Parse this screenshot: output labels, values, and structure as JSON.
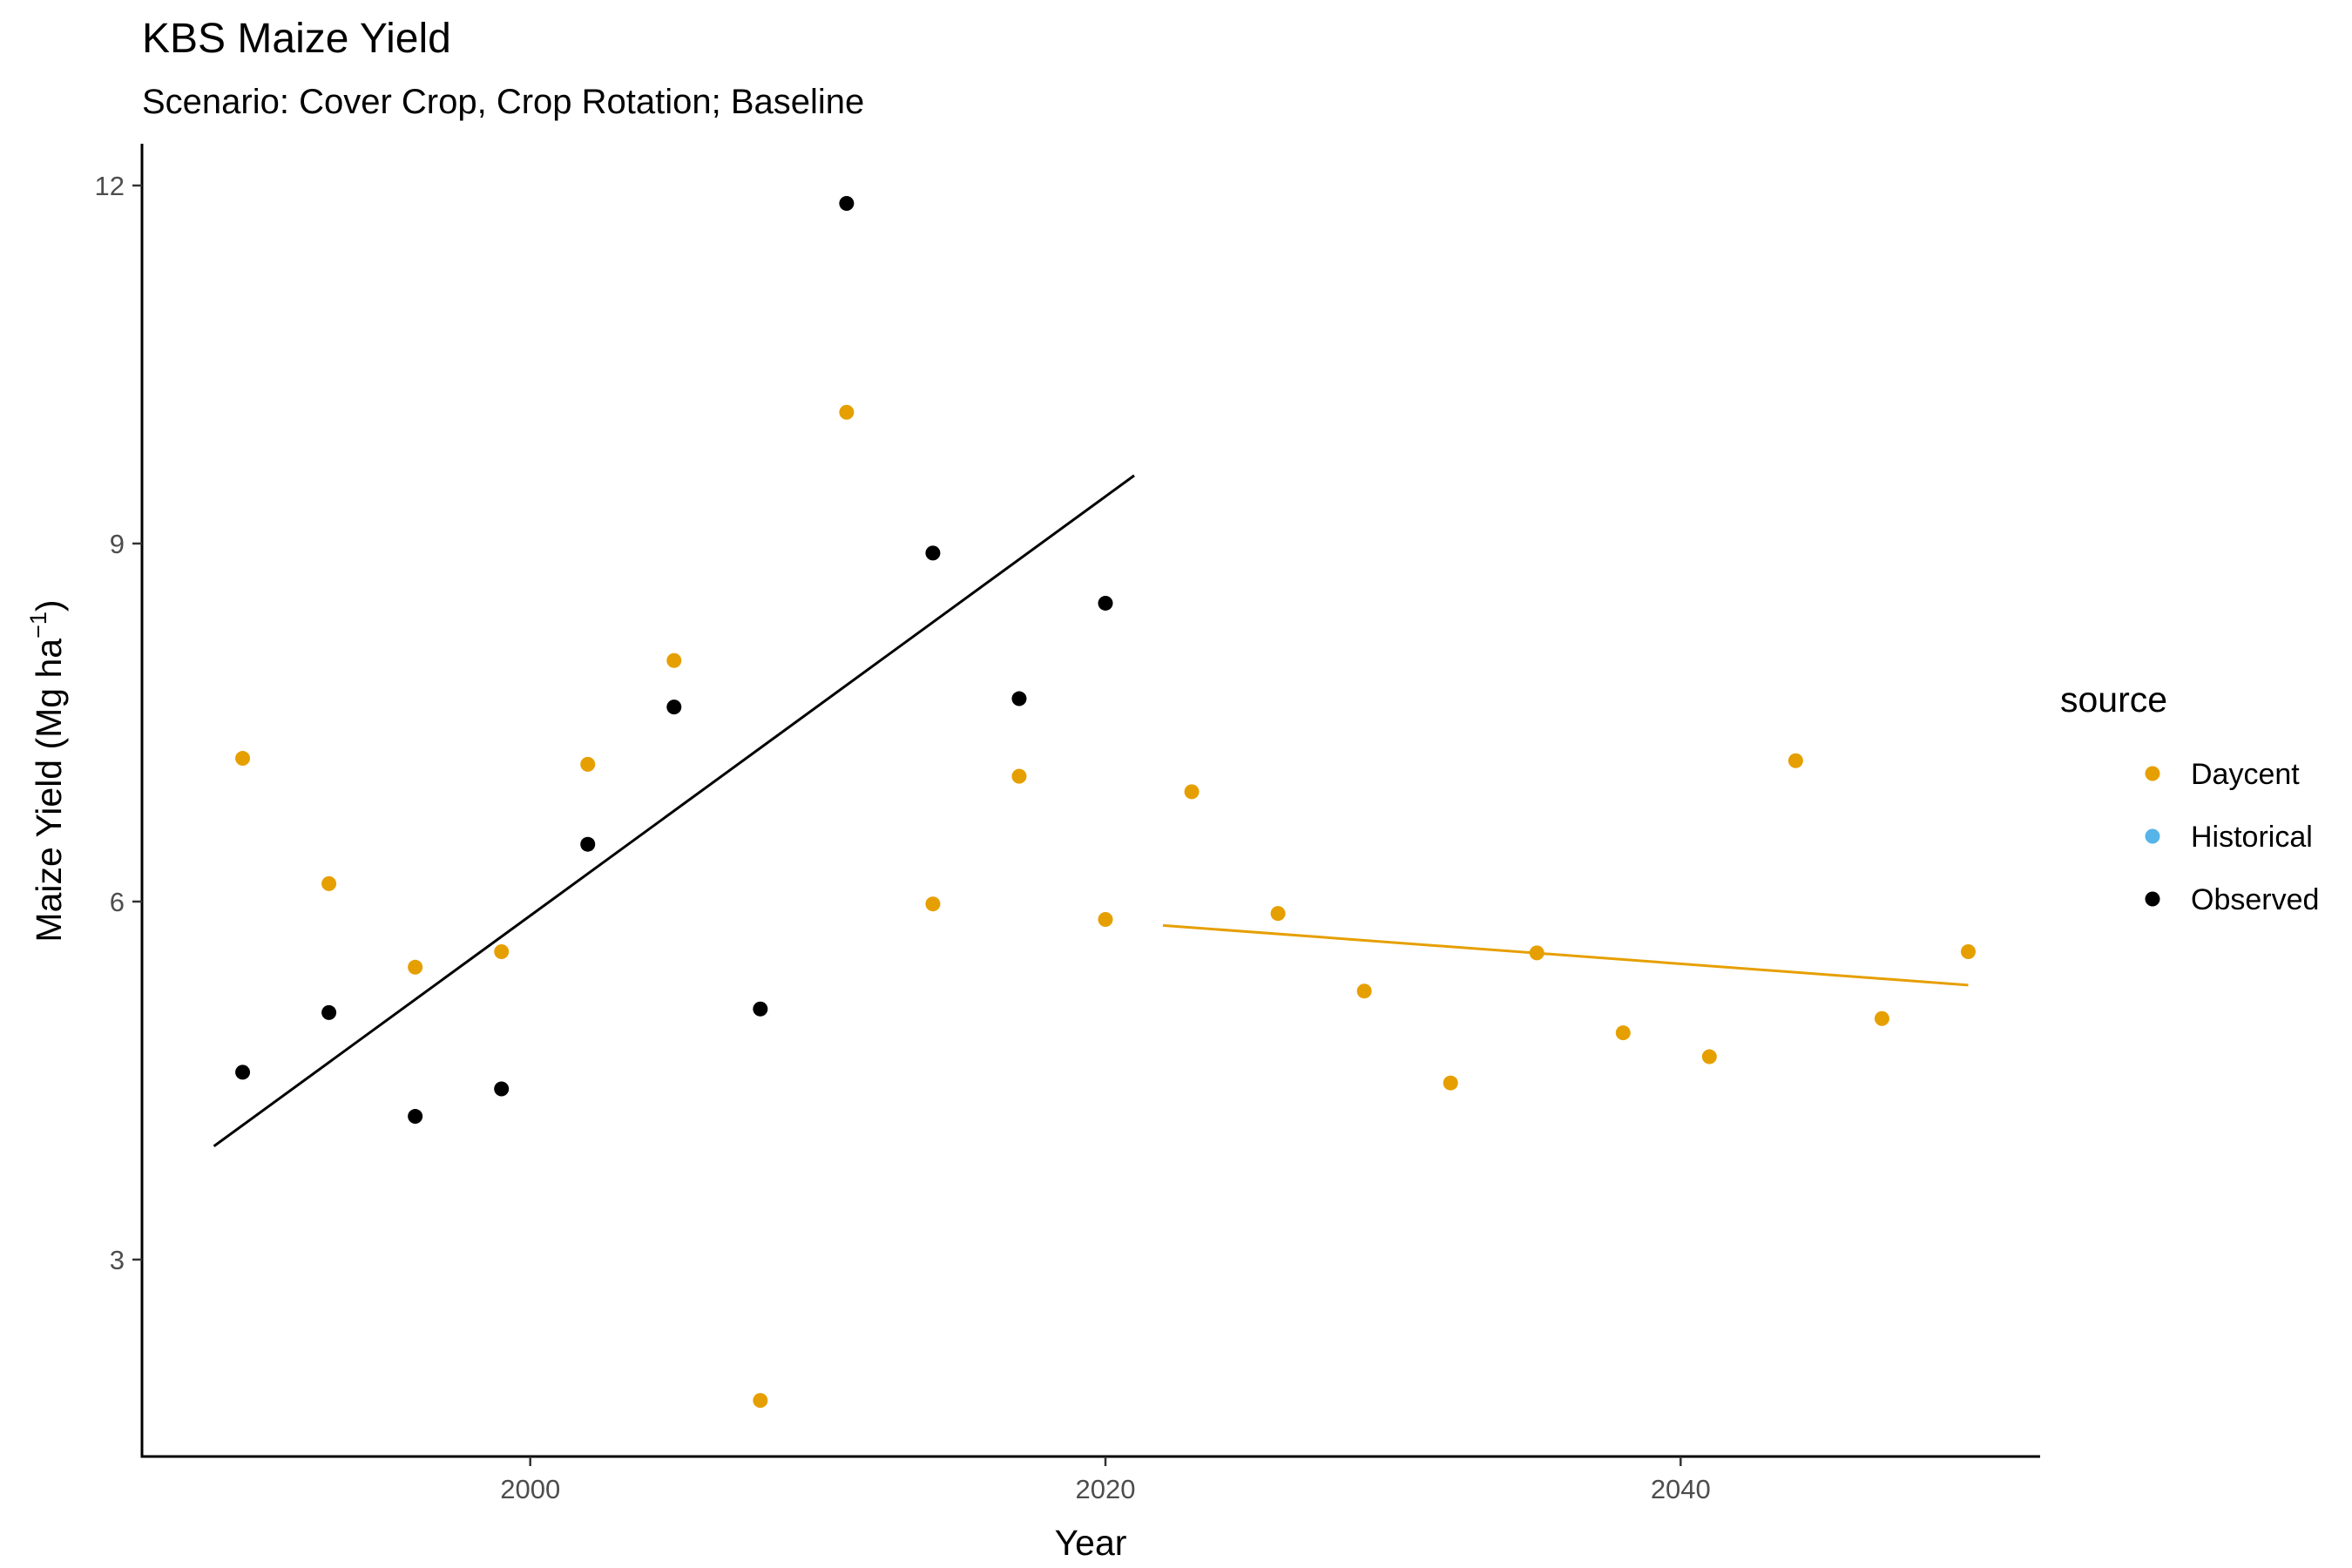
{
  "chart_data": {
    "type": "scatter",
    "title": "KBS Maize Yield",
    "subtitle": "Scenario: Cover Crop, Crop Rotation; Baseline",
    "xlabel": "Year",
    "ylabel_main": "Maize Yield (Mg ha",
    "ylabel_sup": "−1",
    "ylabel_close": ")",
    "xlim": [
      1986.5,
      2052.5
    ],
    "ylim": [
      1.35,
      12.35
    ],
    "x_ticks": [
      2000,
      2020,
      2040
    ],
    "x_tick_labels": [
      "2000",
      "2020",
      "2040"
    ],
    "y_ticks": [
      3,
      6,
      9,
      12
    ],
    "y_tick_labels": [
      "3",
      "6",
      "9",
      "12"
    ],
    "grid": false,
    "legend": {
      "title": "source",
      "position": "right",
      "entries": [
        {
          "label": "Daycent",
          "color": "#E69F00"
        },
        {
          "label": "Historical",
          "color": "#56B4E9"
        },
        {
          "label": "Observed",
          "color": "#000000"
        }
      ]
    },
    "series": [
      {
        "name": "Daycent",
        "color": "#E69F00",
        "points": [
          [
            1990,
            7.2
          ],
          [
            1993,
            6.15
          ],
          [
            1996,
            5.45
          ],
          [
            1999,
            5.58
          ],
          [
            2002,
            7.15
          ],
          [
            2005,
            8.02
          ],
          [
            2008,
            1.82
          ],
          [
            2011,
            10.1
          ],
          [
            2014,
            5.98
          ],
          [
            2017,
            7.05
          ],
          [
            2020,
            5.85
          ],
          [
            2023,
            6.92
          ],
          [
            2026,
            5.9
          ],
          [
            2029,
            5.25
          ],
          [
            2032,
            4.48
          ],
          [
            2035,
            5.57
          ],
          [
            2038,
            4.9
          ],
          [
            2041,
            4.7
          ],
          [
            2044,
            7.18
          ],
          [
            2047,
            5.02
          ],
          [
            2050,
            5.58
          ]
        ]
      },
      {
        "name": "Observed",
        "color": "#000000",
        "points": [
          [
            1990,
            4.57
          ],
          [
            1993,
            5.07
          ],
          [
            1996,
            4.2
          ],
          [
            1999,
            4.43
          ],
          [
            2002,
            6.48
          ],
          [
            2005,
            7.63
          ],
          [
            2008,
            5.1
          ],
          [
            2011,
            11.85
          ],
          [
            2014,
            8.92
          ],
          [
            2017,
            7.7
          ],
          [
            2020,
            8.5
          ]
        ]
      }
    ],
    "trend_lines": [
      {
        "series": "Observed",
        "color": "#000000",
        "x": [
          1989,
          2021
        ],
        "y": [
          3.95,
          9.57
        ]
      },
      {
        "series": "Daycent",
        "color": "#E69F00",
        "x": [
          2022,
          2050
        ],
        "y": [
          5.8,
          5.3
        ]
      }
    ]
  }
}
